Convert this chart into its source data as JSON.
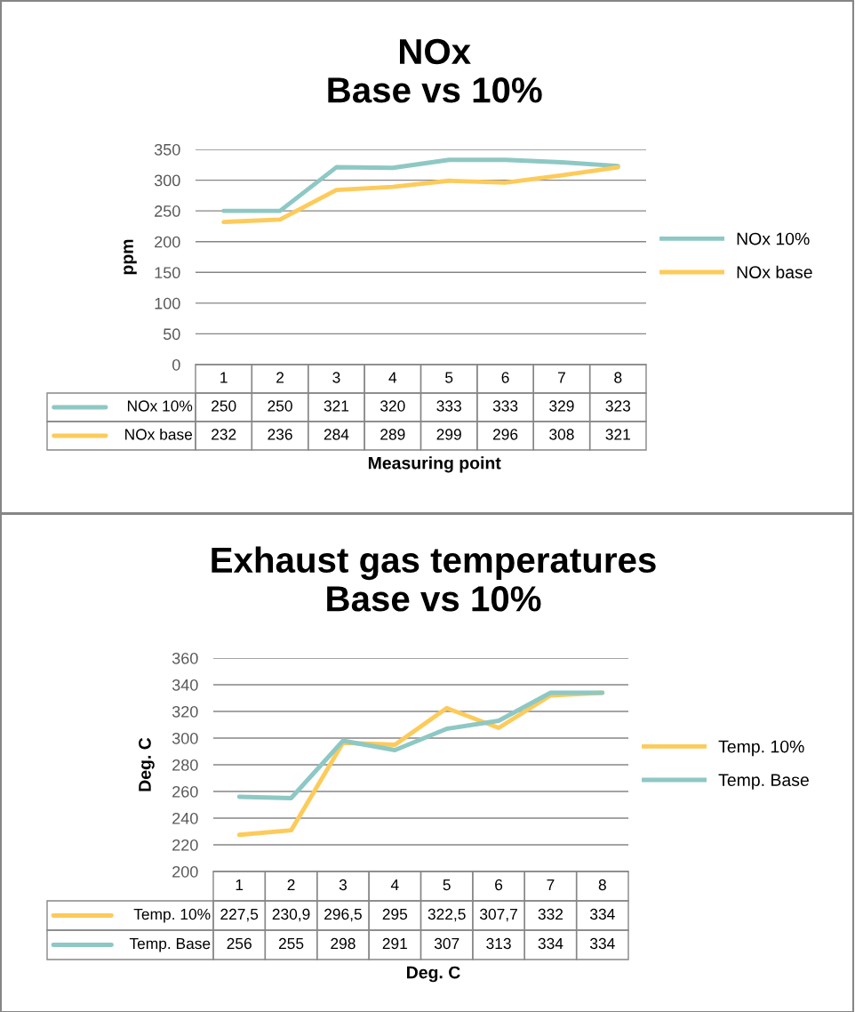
{
  "chart_data": [
    {
      "type": "line",
      "title": "NOx\nBase vs 10%",
      "xlabel": "Measuring point",
      "ylabel": "ppm",
      "categories": [
        "1",
        "2",
        "3",
        "4",
        "5",
        "6",
        "7",
        "8"
      ],
      "series": [
        {
          "name": "NOx 10%",
          "color": "#8ec8c4",
          "values": [
            250,
            250,
            321,
            320,
            333,
            333,
            329,
            323
          ]
        },
        {
          "name": "NOx base",
          "color": "#fdcb5a",
          "values": [
            232,
            236,
            284,
            289,
            299,
            296,
            308,
            321
          ]
        }
      ],
      "ylim": [
        0,
        350
      ],
      "yticks": [
        0,
        50,
        100,
        150,
        200,
        250,
        300,
        350
      ],
      "grid": "y",
      "legend": "right",
      "data_labels": true
    },
    {
      "type": "line",
      "title": "Exhaust gas temperatures\nBase vs 10%",
      "xlabel": "Deg. C",
      "ylabel": "Deg. C",
      "categories": [
        "1",
        "2",
        "3",
        "4",
        "5",
        "6",
        "7",
        "8"
      ],
      "series": [
        {
          "name": "Temp. 10%",
          "color": "#fdcb5a",
          "values": [
            227.5,
            230.9,
            296.5,
            295,
            322.5,
            307.7,
            332,
            334
          ],
          "value_labels": [
            "227,5",
            "230,9",
            "296,5",
            "295",
            "322,5",
            "307,7",
            "332",
            "334"
          ]
        },
        {
          "name": "Temp. Base",
          "color": "#8ec8c4",
          "values": [
            256,
            255,
            298,
            291,
            307,
            313,
            334,
            334
          ],
          "value_labels": [
            "256",
            "255",
            "298",
            "291",
            "307",
            "313",
            "334",
            "334"
          ]
        }
      ],
      "ylim": [
        200,
        360
      ],
      "yticks": [
        200,
        220,
        240,
        260,
        280,
        300,
        320,
        340,
        360
      ],
      "grid": "y",
      "legend": "right"
    }
  ]
}
